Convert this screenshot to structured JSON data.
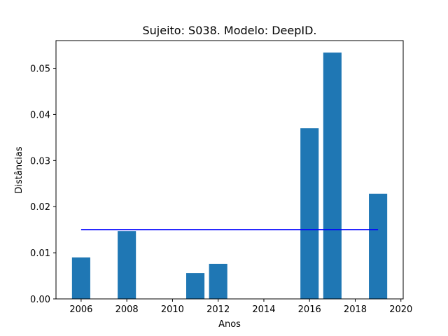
{
  "chart_data": {
    "type": "bar",
    "title": "Sujeito: S038. Modelo: DeepID.",
    "xlabel": "Anos",
    "ylabel": "Distâncias",
    "xlim": [
      2004.9,
      2020.1
    ],
    "ylim": [
      0,
      0.056
    ],
    "xticks": [
      2006,
      2008,
      2010,
      2012,
      2014,
      2016,
      2018,
      2020
    ],
    "yticks": [
      0.0,
      0.01,
      0.02,
      0.03,
      0.04,
      0.05
    ],
    "ytick_labels": [
      "0.00",
      "0.01",
      "0.02",
      "0.03",
      "0.04",
      "0.05"
    ],
    "bar_color": "#1f77b4",
    "bar_width": 0.8,
    "bars": [
      {
        "x": 2006,
        "value": 0.009
      },
      {
        "x": 2008,
        "value": 0.0147
      },
      {
        "x": 2011,
        "value": 0.0056
      },
      {
        "x": 2012,
        "value": 0.0076
      },
      {
        "x": 2016,
        "value": 0.037
      },
      {
        "x": 2017,
        "value": 0.0534
      },
      {
        "x": 2019,
        "value": 0.0228
      }
    ],
    "reference_line": {
      "x_start": 2006,
      "x_end": 2019,
      "y": 0.015,
      "color": "#0000ff"
    },
    "grid": false,
    "legend": "none"
  }
}
